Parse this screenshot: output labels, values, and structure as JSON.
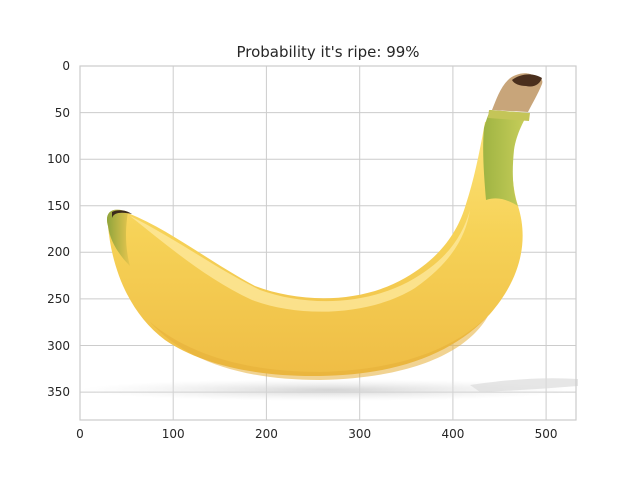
{
  "title": "Probability it's ripe: 99%",
  "subject": "banana",
  "axes": {
    "x_ticks": [
      "0",
      "100",
      "200",
      "300",
      "400",
      "500"
    ],
    "y_ticks": [
      "0",
      "50",
      "100",
      "150",
      "200",
      "250",
      "300",
      "350"
    ],
    "x_range": [
      0,
      532
    ],
    "y_range": [
      380,
      0
    ],
    "grid": true
  },
  "colors": {
    "grid": "#cccccc",
    "frame": "#cccccc",
    "banana_main": "#f2cf4e",
    "banana_light": "#fbe68a",
    "banana_shade": "#e9b53c",
    "stem_green": "#a9b94a",
    "tip_brown": "#5b3a24",
    "shadow": "#d9d9d9"
  }
}
